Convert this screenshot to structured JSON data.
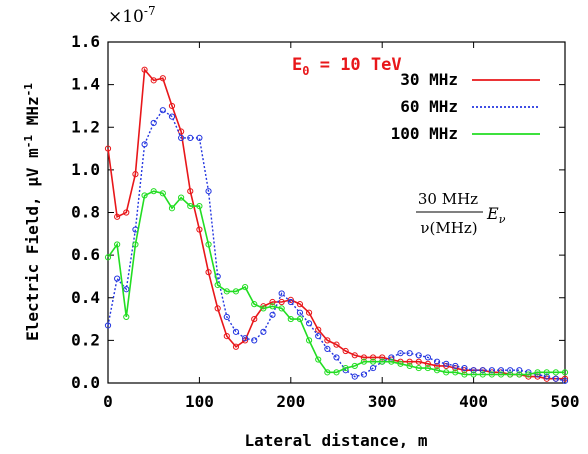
{
  "chart_data": {
    "type": "line",
    "xlabel": "Lateral distance, m",
    "ylabel_main": "Electric Field, μV m",
    "ylabel_sup1": "-1",
    "ylabel_mid": " MHz",
    "ylabel_sup2": "-1",
    "y_multiplier": {
      "base": "×10",
      "exp": "-7"
    },
    "annotation": {
      "main": "E",
      "sub": "0",
      "rest": " = 10 TeV"
    },
    "formula": {
      "numerator": "30 MHz",
      "denominator": "ν(MHz)",
      "symbol": "E",
      "symbol_sub": "ν"
    },
    "xlim": [
      0,
      500
    ],
    "ylim": [
      0,
      1.6
    ],
    "xticks": [
      "0",
      "100",
      "200",
      "300",
      "400",
      "500"
    ],
    "yticks": [
      "0.0",
      "0.2",
      "0.4",
      "0.6",
      "0.8",
      "1.0",
      "1.2",
      "1.4",
      "1.6"
    ],
    "legend": "top-right",
    "series": [
      {
        "name": "30 MHz",
        "color": "#e8171a",
        "dash": "solid",
        "x": [
          0,
          10,
          20,
          30,
          40,
          50,
          60,
          70,
          80,
          90,
          100,
          110,
          120,
          130,
          140,
          150,
          160,
          170,
          180,
          190,
          200,
          210,
          220,
          230,
          240,
          250,
          260,
          270,
          280,
          290,
          300,
          310,
          320,
          330,
          340,
          350,
          360,
          370,
          380,
          390,
          400,
          410,
          420,
          430,
          440,
          450,
          460,
          470,
          480,
          490,
          500
        ],
        "y": [
          1.1,
          0.78,
          0.8,
          0.98,
          1.47,
          1.42,
          1.43,
          1.3,
          1.18,
          0.9,
          0.72,
          0.52,
          0.35,
          0.22,
          0.17,
          0.2,
          0.3,
          0.36,
          0.38,
          0.38,
          0.39,
          0.37,
          0.33,
          0.25,
          0.2,
          0.18,
          0.15,
          0.13,
          0.12,
          0.12,
          0.12,
          0.11,
          0.1,
          0.1,
          0.1,
          0.09,
          0.08,
          0.08,
          0.07,
          0.06,
          0.06,
          0.06,
          0.05,
          0.05,
          0.04,
          0.04,
          0.03,
          0.03,
          0.02,
          0.02,
          0.02
        ]
      },
      {
        "name": "60 MHz",
        "color": "#2436e0",
        "dash": "dotted",
        "x": [
          0,
          10,
          20,
          30,
          40,
          50,
          60,
          70,
          80,
          90,
          100,
          110,
          120,
          130,
          140,
          150,
          160,
          170,
          180,
          190,
          200,
          210,
          220,
          230,
          240,
          250,
          260,
          270,
          280,
          290,
          300,
          310,
          320,
          330,
          340,
          350,
          360,
          370,
          380,
          390,
          400,
          410,
          420,
          430,
          440,
          450,
          460,
          470,
          480,
          490,
          500
        ],
        "y": [
          0.27,
          0.49,
          0.44,
          0.72,
          1.12,
          1.22,
          1.28,
          1.25,
          1.15,
          1.15,
          1.15,
          0.9,
          0.5,
          0.31,
          0.24,
          0.21,
          0.2,
          0.24,
          0.32,
          0.42,
          0.38,
          0.33,
          0.28,
          0.22,
          0.16,
          0.12,
          0.06,
          0.03,
          0.04,
          0.07,
          0.1,
          0.12,
          0.14,
          0.14,
          0.13,
          0.12,
          0.1,
          0.09,
          0.08,
          0.07,
          0.06,
          0.06,
          0.06,
          0.06,
          0.06,
          0.06,
          0.05,
          0.04,
          0.03,
          0.02,
          0.01
        ]
      },
      {
        "name": "100 MHz",
        "color": "#22dd22",
        "dash": "solid",
        "x": [
          0,
          10,
          20,
          30,
          40,
          50,
          60,
          70,
          80,
          90,
          100,
          110,
          120,
          130,
          140,
          150,
          160,
          170,
          180,
          190,
          200,
          210,
          220,
          230,
          240,
          250,
          260,
          270,
          280,
          290,
          300,
          310,
          320,
          330,
          340,
          350,
          360,
          370,
          380,
          390,
          400,
          410,
          420,
          430,
          440,
          450,
          460,
          470,
          480,
          490,
          500
        ],
        "y": [
          0.59,
          0.65,
          0.31,
          0.65,
          0.88,
          0.9,
          0.89,
          0.82,
          0.87,
          0.83,
          0.83,
          0.65,
          0.46,
          0.43,
          0.43,
          0.45,
          0.37,
          0.35,
          0.36,
          0.35,
          0.3,
          0.3,
          0.2,
          0.11,
          0.05,
          0.05,
          0.07,
          0.08,
          0.1,
          0.1,
          0.1,
          0.1,
          0.09,
          0.08,
          0.07,
          0.07,
          0.06,
          0.05,
          0.05,
          0.04,
          0.04,
          0.04,
          0.04,
          0.04,
          0.04,
          0.04,
          0.04,
          0.05,
          0.05,
          0.05,
          0.05
        ]
      }
    ]
  }
}
